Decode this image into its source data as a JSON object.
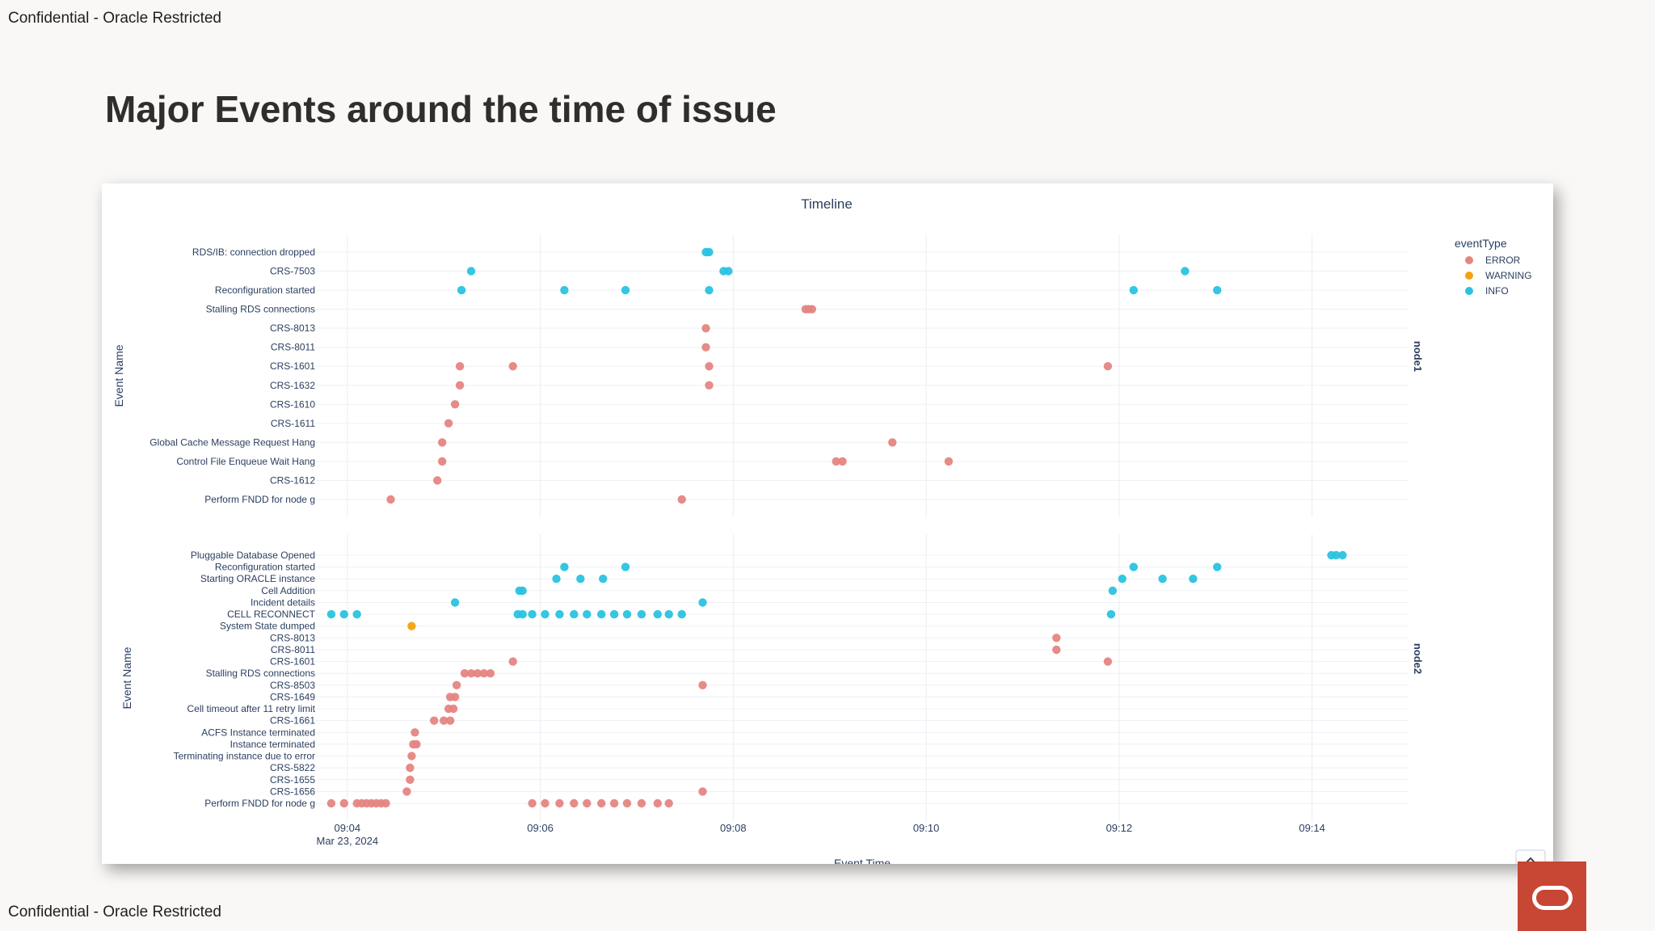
{
  "header": {
    "confidential": "Confidential - Oracle Restricted"
  },
  "title": "Major Events around the time of issue",
  "footer": {
    "confidential": "Confidential - Oracle Restricted"
  },
  "colors": {
    "ERROR": "#e58582",
    "WARNING": "#f2a30f",
    "INFO": "#29c3e0",
    "logo": "#c74634"
  },
  "chart_data": {
    "type": "scatter",
    "title": "Timeline",
    "xlabel": "Event Time",
    "x_range": [
      "09:03:40",
      "09:15:00"
    ],
    "x_ticks": [
      "09:04",
      "09:06",
      "09:08",
      "09:10",
      "09:12",
      "09:14"
    ],
    "x_tick_date": "Mar 23, 2024",
    "legend": {
      "title": "eventType",
      "position": "top-right",
      "entries": [
        "ERROR",
        "WARNING",
        "INFO"
      ]
    },
    "grid": true,
    "facets": [
      {
        "name": "node1",
        "ylabel": "Event Name",
        "categories": [
          "RDS/IB: connection dropped",
          "CRS-7503",
          "Reconfiguration started",
          "Stalling RDS connections",
          "CRS-8013",
          "CRS-8011",
          "CRS-1601",
          "CRS-1632",
          "CRS-1610",
          "CRS-1611",
          "Global Cache Message Request Hang",
          "Control File Enqueue Wait Hang",
          "CRS-1612",
          "Perform FNDD for node g"
        ],
        "points": [
          [
            "09:07:43",
            "RDS/IB: connection dropped",
            "INFO"
          ],
          [
            "09:07:45",
            "RDS/IB: connection dropped",
            "INFO"
          ],
          [
            "09:05:17",
            "CRS-7503",
            "INFO"
          ],
          [
            "09:07:54",
            "CRS-7503",
            "INFO"
          ],
          [
            "09:07:57",
            "CRS-7503",
            "INFO"
          ],
          [
            "09:12:41",
            "CRS-7503",
            "INFO"
          ],
          [
            "09:05:11",
            "Reconfiguration started",
            "INFO"
          ],
          [
            "09:06:15",
            "Reconfiguration started",
            "INFO"
          ],
          [
            "09:06:53",
            "Reconfiguration started",
            "INFO"
          ],
          [
            "09:07:45",
            "Reconfiguration started",
            "INFO"
          ],
          [
            "09:12:09",
            "Reconfiguration started",
            "INFO"
          ],
          [
            "09:13:01",
            "Reconfiguration started",
            "INFO"
          ],
          [
            "09:08:45",
            "Stalling RDS connections",
            "ERROR"
          ],
          [
            "09:08:47",
            "Stalling RDS connections",
            "ERROR"
          ],
          [
            "09:08:49",
            "Stalling RDS connections",
            "ERROR"
          ],
          [
            "09:07:43",
            "CRS-8013",
            "ERROR"
          ],
          [
            "09:07:43",
            "CRS-8011",
            "ERROR"
          ],
          [
            "09:05:10",
            "CRS-1601",
            "ERROR"
          ],
          [
            "09:05:43",
            "CRS-1601",
            "ERROR"
          ],
          [
            "09:07:45",
            "CRS-1601",
            "ERROR"
          ],
          [
            "09:11:53",
            "CRS-1601",
            "ERROR"
          ],
          [
            "09:05:10",
            "CRS-1632",
            "ERROR"
          ],
          [
            "09:07:45",
            "CRS-1632",
            "ERROR"
          ],
          [
            "09:05:07",
            "CRS-1610",
            "ERROR"
          ],
          [
            "09:05:03",
            "CRS-1611",
            "ERROR"
          ],
          [
            "09:04:59",
            "Global Cache Message Request Hang",
            "ERROR"
          ],
          [
            "09:09:39",
            "Global Cache Message Request Hang",
            "ERROR"
          ],
          [
            "09:04:59",
            "Control File Enqueue Wait Hang",
            "ERROR"
          ],
          [
            "09:09:04",
            "Control File Enqueue Wait Hang",
            "ERROR"
          ],
          [
            "09:09:08",
            "Control File Enqueue Wait Hang",
            "ERROR"
          ],
          [
            "09:10:14",
            "Control File Enqueue Wait Hang",
            "ERROR"
          ],
          [
            "09:04:56",
            "CRS-1612",
            "ERROR"
          ],
          [
            "09:04:27",
            "Perform FNDD for node g",
            "ERROR"
          ],
          [
            "09:07:28",
            "Perform FNDD for node g",
            "ERROR"
          ]
        ]
      },
      {
        "name": "node2",
        "ylabel": "Event Name",
        "categories": [
          "Pluggable Database Opened",
          "Reconfiguration started",
          "Starting ORACLE instance",
          "Cell Addition",
          "Incident details",
          "CELL RECONNECT",
          "System State dumped",
          "CRS-8013",
          "CRS-8011",
          "CRS-1601",
          "Stalling RDS connections",
          "CRS-8503",
          "CRS-1649",
          "Cell timeout after 11 retry limit",
          "CRS-1661",
          "ACFS Instance terminated",
          "Instance terminated",
          "Terminating instance due to error",
          "CRS-5822",
          "CRS-1655",
          "CRS-1656",
          "Perform FNDD for node g"
        ],
        "points": [
          [
            "09:14:12",
            "Pluggable Database Opened",
            "INFO"
          ],
          [
            "09:14:15",
            "Pluggable Database Opened",
            "INFO"
          ],
          [
            "09:14:19",
            "Pluggable Database Opened",
            "INFO"
          ],
          [
            "09:06:15",
            "Reconfiguration started",
            "INFO"
          ],
          [
            "09:06:53",
            "Reconfiguration started",
            "INFO"
          ],
          [
            "09:12:09",
            "Reconfiguration started",
            "INFO"
          ],
          [
            "09:13:01",
            "Reconfiguration started",
            "INFO"
          ],
          [
            "09:06:10",
            "Starting ORACLE instance",
            "INFO"
          ],
          [
            "09:06:25",
            "Starting ORACLE instance",
            "INFO"
          ],
          [
            "09:06:39",
            "Starting ORACLE instance",
            "INFO"
          ],
          [
            "09:12:02",
            "Starting ORACLE instance",
            "INFO"
          ],
          [
            "09:12:27",
            "Starting ORACLE instance",
            "INFO"
          ],
          [
            "09:12:46",
            "Starting ORACLE instance",
            "INFO"
          ],
          [
            "09:05:47",
            "Cell Addition",
            "INFO"
          ],
          [
            "09:05:49",
            "Cell Addition",
            "INFO"
          ],
          [
            "09:11:56",
            "Cell Addition",
            "INFO"
          ],
          [
            "09:05:07",
            "Incident details",
            "INFO"
          ],
          [
            "09:07:41",
            "Incident details",
            "INFO"
          ],
          [
            "09:03:50",
            "CELL RECONNECT",
            "INFO"
          ],
          [
            "09:03:58",
            "CELL RECONNECT",
            "INFO"
          ],
          [
            "09:04:06",
            "CELL RECONNECT",
            "INFO"
          ],
          [
            "09:05:46",
            "CELL RECONNECT",
            "INFO"
          ],
          [
            "09:05:49",
            "CELL RECONNECT",
            "INFO"
          ],
          [
            "09:05:55",
            "CELL RECONNECT",
            "INFO"
          ],
          [
            "09:06:03",
            "CELL RECONNECT",
            "INFO"
          ],
          [
            "09:06:12",
            "CELL RECONNECT",
            "INFO"
          ],
          [
            "09:06:21",
            "CELL RECONNECT",
            "INFO"
          ],
          [
            "09:06:29",
            "CELL RECONNECT",
            "INFO"
          ],
          [
            "09:06:38",
            "CELL RECONNECT",
            "INFO"
          ],
          [
            "09:06:46",
            "CELL RECONNECT",
            "INFO"
          ],
          [
            "09:06:54",
            "CELL RECONNECT",
            "INFO"
          ],
          [
            "09:07:03",
            "CELL RECONNECT",
            "INFO"
          ],
          [
            "09:07:13",
            "CELL RECONNECT",
            "INFO"
          ],
          [
            "09:07:20",
            "CELL RECONNECT",
            "INFO"
          ],
          [
            "09:07:28",
            "CELL RECONNECT",
            "INFO"
          ],
          [
            "09:11:55",
            "CELL RECONNECT",
            "INFO"
          ],
          [
            "09:04:40",
            "System State dumped",
            "WARNING"
          ],
          [
            "09:11:21",
            "CRS-8013",
            "ERROR"
          ],
          [
            "09:11:21",
            "CRS-8011",
            "ERROR"
          ],
          [
            "09:05:43",
            "CRS-1601",
            "ERROR"
          ],
          [
            "09:11:53",
            "CRS-1601",
            "ERROR"
          ],
          [
            "09:05:13",
            "Stalling RDS connections",
            "ERROR"
          ],
          [
            "09:05:17",
            "Stalling RDS connections",
            "ERROR"
          ],
          [
            "09:05:21",
            "Stalling RDS connections",
            "ERROR"
          ],
          [
            "09:05:25",
            "Stalling RDS connections",
            "ERROR"
          ],
          [
            "09:05:29",
            "Stalling RDS connections",
            "ERROR"
          ],
          [
            "09:05:08",
            "CRS-8503",
            "ERROR"
          ],
          [
            "09:07:41",
            "CRS-8503",
            "ERROR"
          ],
          [
            "09:05:04",
            "CRS-1649",
            "ERROR"
          ],
          [
            "09:05:07",
            "CRS-1649",
            "ERROR"
          ],
          [
            "09:05:03",
            "Cell timeout after 11 retry limit",
            "ERROR"
          ],
          [
            "09:05:06",
            "Cell timeout after 11 retry limit",
            "ERROR"
          ],
          [
            "09:04:54",
            "CRS-1661",
            "ERROR"
          ],
          [
            "09:05:00",
            "CRS-1661",
            "ERROR"
          ],
          [
            "09:05:04",
            "CRS-1661",
            "ERROR"
          ],
          [
            "09:04:42",
            "ACFS Instance terminated",
            "ERROR"
          ],
          [
            "09:04:41",
            "Instance terminated",
            "ERROR"
          ],
          [
            "09:04:43",
            "Instance terminated",
            "ERROR"
          ],
          [
            "09:04:40",
            "Terminating instance due to error",
            "ERROR"
          ],
          [
            "09:04:39",
            "CRS-5822",
            "ERROR"
          ],
          [
            "09:04:39",
            "CRS-1655",
            "ERROR"
          ],
          [
            "09:04:37",
            "CRS-1656",
            "ERROR"
          ],
          [
            "09:07:41",
            "CRS-1656",
            "ERROR"
          ],
          [
            "09:03:50",
            "Perform FNDD for node g",
            "ERROR"
          ],
          [
            "09:03:58",
            "Perform FNDD for node g",
            "ERROR"
          ],
          [
            "09:04:06",
            "Perform FNDD for node g",
            "ERROR"
          ],
          [
            "09:04:09",
            "Perform FNDD for node g",
            "ERROR"
          ],
          [
            "09:04:12",
            "Perform FNDD for node g",
            "ERROR"
          ],
          [
            "09:04:15",
            "Perform FNDD for node g",
            "ERROR"
          ],
          [
            "09:04:18",
            "Perform FNDD for node g",
            "ERROR"
          ],
          [
            "09:04:21",
            "Perform FNDD for node g",
            "ERROR"
          ],
          [
            "09:04:24",
            "Perform FNDD for node g",
            "ERROR"
          ],
          [
            "09:05:55",
            "Perform FNDD for node g",
            "ERROR"
          ],
          [
            "09:06:03",
            "Perform FNDD for node g",
            "ERROR"
          ],
          [
            "09:06:12",
            "Perform FNDD for node g",
            "ERROR"
          ],
          [
            "09:06:21",
            "Perform FNDD for node g",
            "ERROR"
          ],
          [
            "09:06:29",
            "Perform FNDD for node g",
            "ERROR"
          ],
          [
            "09:06:38",
            "Perform FNDD for node g",
            "ERROR"
          ],
          [
            "09:06:46",
            "Perform FNDD for node g",
            "ERROR"
          ],
          [
            "09:06:54",
            "Perform FNDD for node g",
            "ERROR"
          ],
          [
            "09:07:03",
            "Perform FNDD for node g",
            "ERROR"
          ],
          [
            "09:07:13",
            "Perform FNDD for node g",
            "ERROR"
          ],
          [
            "09:07:20",
            "Perform FNDD for node g",
            "ERROR"
          ]
        ]
      }
    ]
  }
}
